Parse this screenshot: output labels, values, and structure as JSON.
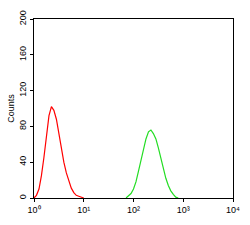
{
  "chart_data": {
    "type": "line",
    "y_label": "Counts",
    "log": "x",
    "grid": false,
    "x": [
      1,
      1.12,
      1.26,
      1.41,
      1.58,
      1.78,
      2.0,
      2.24,
      2.51,
      2.82,
      3.16,
      3.55,
      3.98,
      4.47,
      5.01,
      5.62,
      6.31,
      7.08,
      7.94,
      8.91,
      10,
      70.8,
      79.4,
      89.1,
      100,
      112,
      126,
      141,
      158,
      178,
      200,
      224,
      251,
      282,
      316,
      355,
      398,
      447,
      501,
      562,
      631,
      708,
      794
    ],
    "series": [
      {
        "color": "#ff0000",
        "values": [
          0,
          3,
          10,
          25,
          45,
          70,
          92,
          102,
          98,
          88,
          72,
          55,
          40,
          28,
          18,
          11,
          6,
          3,
          2,
          1,
          0,
          null,
          null,
          null,
          null,
          null,
          null,
          null,
          null,
          null,
          null,
          null,
          null,
          null,
          null,
          null,
          null,
          null,
          null,
          null,
          null,
          null,
          null
        ]
      },
      {
        "color": "#22dd22",
        "values": [
          null,
          null,
          null,
          null,
          null,
          null,
          null,
          null,
          null,
          null,
          null,
          null,
          null,
          null,
          null,
          null,
          null,
          null,
          null,
          null,
          null,
          0,
          2,
          5,
          10,
          18,
          30,
          42,
          56,
          66,
          74,
          76,
          72,
          66,
          56,
          44,
          32,
          22,
          14,
          8,
          4,
          1,
          0
        ]
      }
    ],
    "xlim": [
      1,
      10000
    ],
    "xticks": [
      {
        "value": 1,
        "label": "10⁰"
      },
      {
        "value": 10,
        "label": "10¹"
      },
      {
        "value": 100,
        "label": "10²"
      },
      {
        "value": 1000,
        "label": "10³"
      },
      {
        "value": 10000,
        "label": "10⁴"
      }
    ],
    "ylim": [
      0,
      200
    ],
    "yticks": [
      0,
      40,
      80,
      120,
      160,
      200
    ]
  }
}
